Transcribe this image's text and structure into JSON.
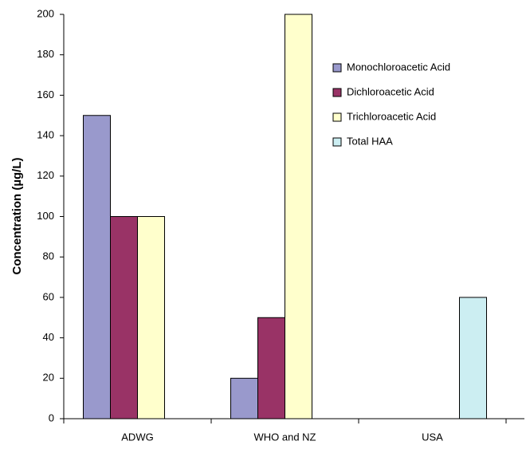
{
  "chart_data": {
    "type": "bar",
    "y_label": "Concentration (µg/L)",
    "categories": [
      "ADWG",
      "WHO and NZ",
      "USA"
    ],
    "series": [
      {
        "name": "Monochloroacetic Acid",
        "color": "#9999cc",
        "values": [
          150,
          20,
          null
        ]
      },
      {
        "name": "Dichloroacetic Acid",
        "color": "#993366",
        "values": [
          100,
          50,
          null
        ]
      },
      {
        "name": "Trichloroacetic Acid",
        "color": "#ffffcc",
        "values": [
          100,
          200,
          null
        ]
      },
      {
        "name": "Total HAA",
        "color": "#cceef2",
        "values": [
          null,
          null,
          60
        ]
      }
    ],
    "ylim": [
      0,
      200
    ],
    "yticks": [
      0,
      20,
      40,
      60,
      80,
      100,
      120,
      140,
      160,
      180,
      200
    ],
    "grid": false,
    "legend": "right"
  }
}
